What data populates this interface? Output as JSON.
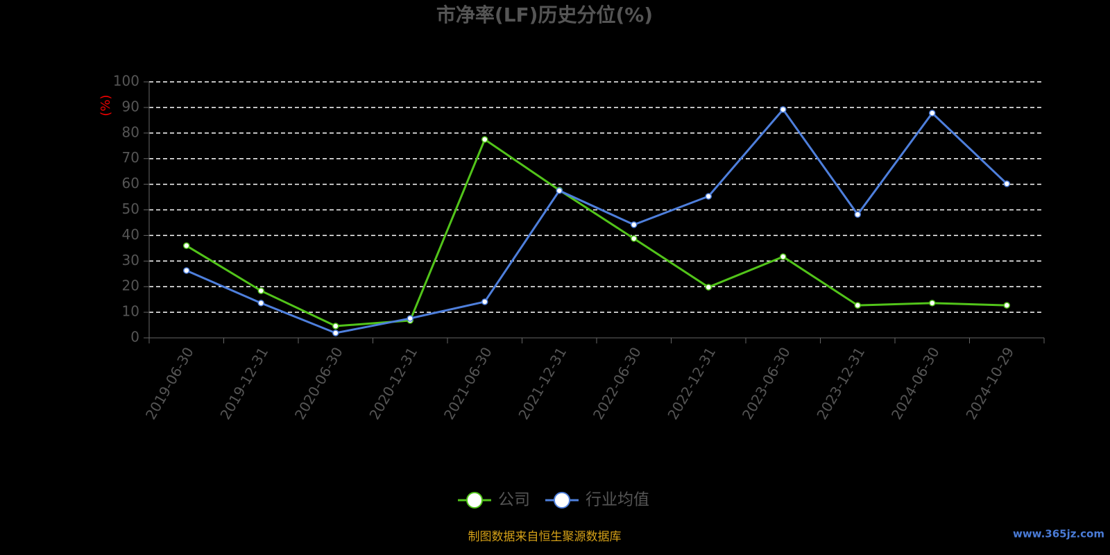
{
  "chart_data": {
    "type": "line",
    "title": "市净率(LF)历史分位(%)",
    "y_label": "(%)",
    "categories": [
      "2019-06-30",
      "2019-12-31",
      "2020-06-30",
      "2020-12-31",
      "2021-06-30",
      "2021-12-31",
      "2022-06-30",
      "2022-12-31",
      "2023-06-30",
      "2023-12-31",
      "2024-06-30",
      "2024-10-29"
    ],
    "series": [
      {
        "name": "公司",
        "color": "#52c41a",
        "values": [
          36.0,
          18.4,
          4.6,
          6.8,
          77.5,
          57.7,
          38.8,
          19.8,
          31.7,
          12.7,
          13.6,
          12.7
        ]
      },
      {
        "name": "行业均值",
        "color": "#4e7fdc",
        "values": [
          26.3,
          13.6,
          1.9,
          7.6,
          14.1,
          57.5,
          44.2,
          55.3,
          89.2,
          48.2,
          87.8,
          60.2
        ]
      }
    ],
    "ylim": [
      0,
      100
    ],
    "yticks": [
      0,
      10,
      20,
      30,
      40,
      50,
      60,
      70,
      80,
      90,
      100
    ],
    "grid": true,
    "source": "制图数据来自恒生聚源数据库",
    "watermark": "www.365jz.com"
  }
}
